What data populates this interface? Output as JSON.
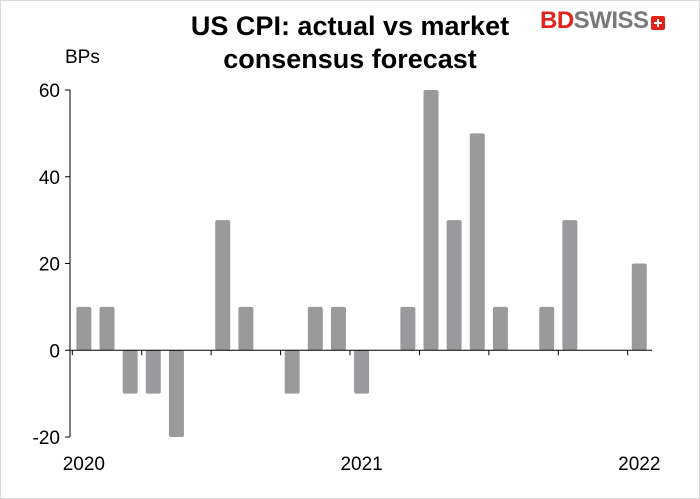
{
  "chart_data": {
    "type": "bar",
    "title": "US CPI: actual vs market consensus forecast",
    "title_lines": [
      "US CPI: actual vs",
      "market",
      "consensus forecast"
    ],
    "ylabel": "BPs",
    "xlabel": "",
    "ylim": [
      -20,
      60
    ],
    "yticks": [
      60,
      40,
      20,
      0,
      -20
    ],
    "ytick_labels": [
      "60",
      "40",
      "20",
      "0",
      "-20"
    ],
    "xtick_labels": [
      "2020",
      "2021",
      "2022"
    ],
    "xtick_positions": [
      0,
      12,
      24
    ],
    "bar_color": "#9a9a9c",
    "values": [
      10,
      10,
      -10,
      -10,
      -20,
      null,
      30,
      10,
      null,
      -10,
      10,
      10,
      -10,
      null,
      10,
      60,
      30,
      50,
      10,
      null,
      10,
      30,
      null,
      null,
      20
    ]
  },
  "logo": {
    "part1": "BD",
    "part2": "SWISS"
  }
}
